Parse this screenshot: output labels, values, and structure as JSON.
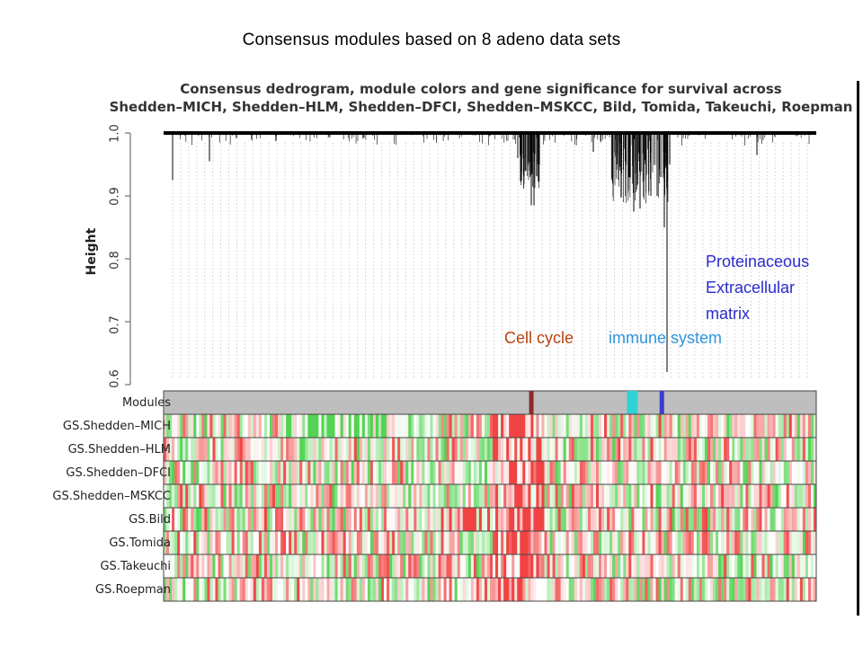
{
  "slide_title": "Consensus modules based on 8 adeno data sets",
  "chart_data": {
    "type": "heatmap",
    "title_line1": "Consensus dedrogram, module colors and gene significance for survival across",
    "title_line2": "Shedden–MICH, Shedden–HLM, Shedden–DFCI, Shedden–MSKCC, Bild, Tomida, Takeuchi, Roepman",
    "ylabel": "Height",
    "ylim": [
      0.6,
      1.0
    ],
    "yticks": [
      "0.6",
      "0.7",
      "0.8",
      "0.9",
      "1.0"
    ],
    "row_labels": [
      "Modules",
      "GS.Shedden–MICH",
      "GS.Shedden–HLM",
      "GS.Shedden–DFCI",
      "GS.Shedden–MSKCC",
      "GS.Bild",
      "GS.Tomida",
      "GS.Takeuchi",
      "GS.Roepman"
    ],
    "modules": [
      {
        "color": "#8b2b2b",
        "position": 0.56
      },
      {
        "color": "#2fd3d3",
        "position": 0.71
      },
      {
        "color": "#3b3bd0",
        "position": 0.76
      }
    ],
    "module_background": "#bebebe",
    "gs_colors": {
      "negative": "#33cc33",
      "positive": "#ee2222",
      "neutral": "#ffffff"
    }
  },
  "annotations": {
    "cell_cycle": "Cell cycle",
    "immune": "immune system",
    "ecm_line1": "Proteinaceous",
    "ecm_line2": "Extracellular",
    "ecm_line3": "matrix"
  },
  "colors": {
    "cell_cycle_text": "#b8420f",
    "immune_text": "#2e95e0",
    "ecm_text": "#2a2ad0"
  }
}
